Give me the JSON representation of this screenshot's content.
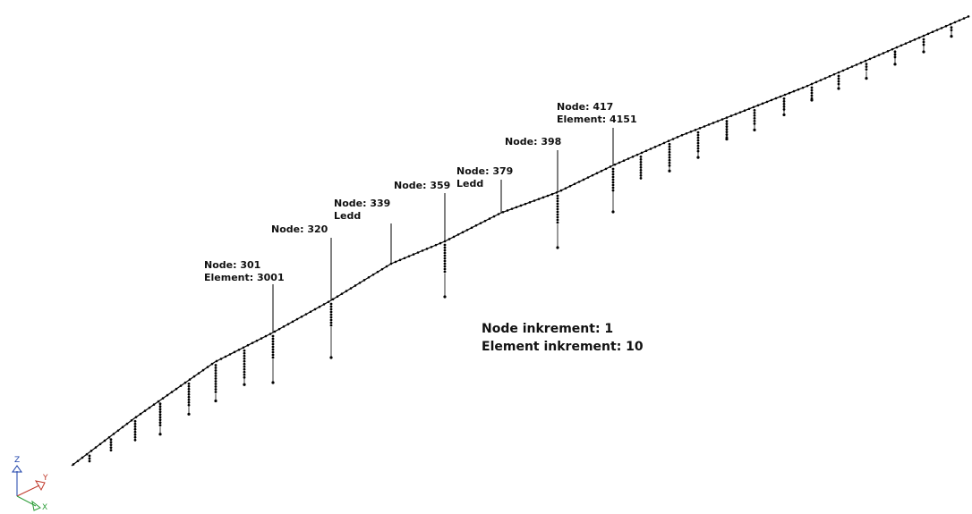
{
  "annotations": [
    {
      "lines": [
        "Node: 301",
        "Element: 3001"
      ]
    },
    {
      "lines": [
        "Node: 320"
      ]
    },
    {
      "lines": [
        "Node: 339",
        "Ledd"
      ]
    },
    {
      "lines": [
        "Node: 359"
      ]
    },
    {
      "lines": [
        "Node: 379",
        "Ledd"
      ]
    },
    {
      "lines": [
        "Node: 398"
      ]
    },
    {
      "lines": [
        "Node: 417",
        "Element: 4151"
      ]
    }
  ],
  "note": {
    "lines": [
      "Node inkrement: 1",
      "Element inkrement: 10"
    ]
  },
  "triad": {
    "z": "Z",
    "y": "Y",
    "x": "X"
  }
}
